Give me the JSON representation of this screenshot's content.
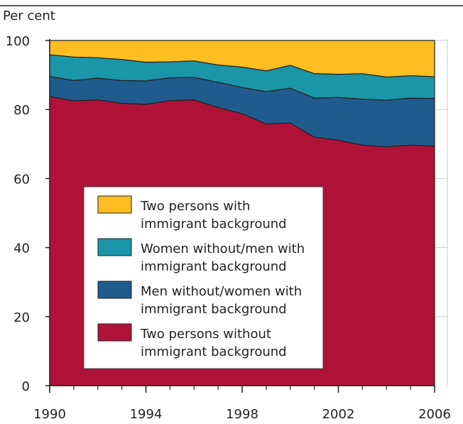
{
  "chart_data": {
    "type": "area",
    "stacked": true,
    "ylabel": "Per cent",
    "x": [
      1990,
      1991,
      1992,
      1993,
      1994,
      1995,
      1996,
      1997,
      1998,
      1999,
      2000,
      2001,
      2002,
      2003,
      2004,
      2005,
      2006
    ],
    "x_ticks": [
      "1990",
      "1994",
      "1998",
      "2002",
      "2006"
    ],
    "y_ticks": [
      "0",
      "20",
      "40",
      "60",
      "80",
      "100"
    ],
    "ylim": [
      0,
      100
    ],
    "grid": true,
    "legend_position": "lower-left inside",
    "series": [
      {
        "name": "Two persons without immigrant background",
        "color": "#b01237",
        "values": [
          83.8,
          82.5,
          82.8,
          81.8,
          81.5,
          82.6,
          82.8,
          80.6,
          78.8,
          75.8,
          76.1,
          72.0,
          71.1,
          69.7,
          69.2,
          69.7,
          69.4
        ]
      },
      {
        "name": "Men without/women with immigrant background",
        "color": "#1f5b8c",
        "values": [
          5.8,
          5.9,
          6.3,
          6.6,
          6.8,
          6.6,
          6.5,
          7.3,
          7.6,
          9.4,
          10.1,
          11.3,
          12.4,
          13.3,
          13.5,
          13.6,
          13.8
        ]
      },
      {
        "name": "Women without/men with immigrant background",
        "color": "#1b96a8",
        "values": [
          6.3,
          6.8,
          5.9,
          6.1,
          5.4,
          4.6,
          4.8,
          5.0,
          5.9,
          6.0,
          6.6,
          7.1,
          6.7,
          7.4,
          6.7,
          6.5,
          6.3
        ]
      },
      {
        "name": "Two persons with immigrant background",
        "color": "#fdbe21",
        "values": [
          4.1,
          4.8,
          5.0,
          5.5,
          6.3,
          6.2,
          5.9,
          7.1,
          7.7,
          8.8,
          7.2,
          9.6,
          9.8,
          9.6,
          10.6,
          10.2,
          10.5
        ]
      }
    ],
    "legend": [
      {
        "color": "#fdbe21",
        "line1": "Two persons with",
        "line2": "immigrant background"
      },
      {
        "color": "#1b96a8",
        "line1": "Women without/men with",
        "line2": "immigrant background"
      },
      {
        "color": "#1f5b8c",
        "line1": "Men without/women with",
        "line2": "immigrant background"
      },
      {
        "color": "#b01237",
        "line1": "Two persons without",
        "line2": "immigrant background"
      }
    ]
  }
}
